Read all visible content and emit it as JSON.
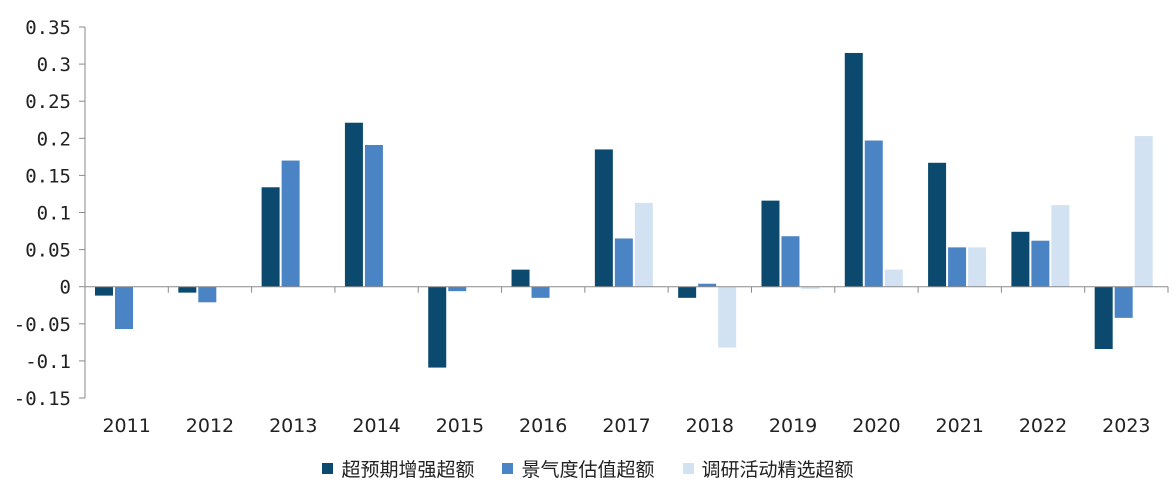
{
  "chart_data": {
    "type": "bar",
    "categories": [
      "2011",
      "2012",
      "2013",
      "2014",
      "2015",
      "2016",
      "2017",
      "2018",
      "2019",
      "2020",
      "2021",
      "2022",
      "2023"
    ],
    "series": [
      {
        "name": "超预期增强超额",
        "color": "#0b4a6e",
        "values": [
          -0.012,
          -0.008,
          0.134,
          0.221,
          -0.109,
          0.023,
          0.185,
          -0.015,
          0.116,
          0.315,
          0.167,
          0.074,
          -0.084
        ]
      },
      {
        "name": "景气度估值超额",
        "color": "#4a84c4",
        "values": [
          -0.057,
          -0.021,
          0.17,
          0.191,
          -0.006,
          -0.015,
          0.065,
          0.004,
          0.068,
          0.197,
          0.053,
          0.062,
          -0.042
        ]
      },
      {
        "name": "调研活动精选超额",
        "color": "#d2e2f2",
        "values": [
          null,
          null,
          null,
          null,
          null,
          null,
          0.113,
          -0.082,
          -0.003,
          0.023,
          0.053,
          0.11,
          0.203
        ]
      }
    ],
    "yticks": [
      "0.35",
      "0.3",
      "0.25",
      "0.2",
      "0.15",
      "0.1",
      "0.05",
      "0",
      "-0.05",
      "-0.1",
      "-0.15"
    ],
    "ylim": [
      -0.15,
      0.35
    ],
    "title": "",
    "xlabel": "",
    "ylabel": "",
    "grid": false,
    "legend_position": "bottom"
  }
}
